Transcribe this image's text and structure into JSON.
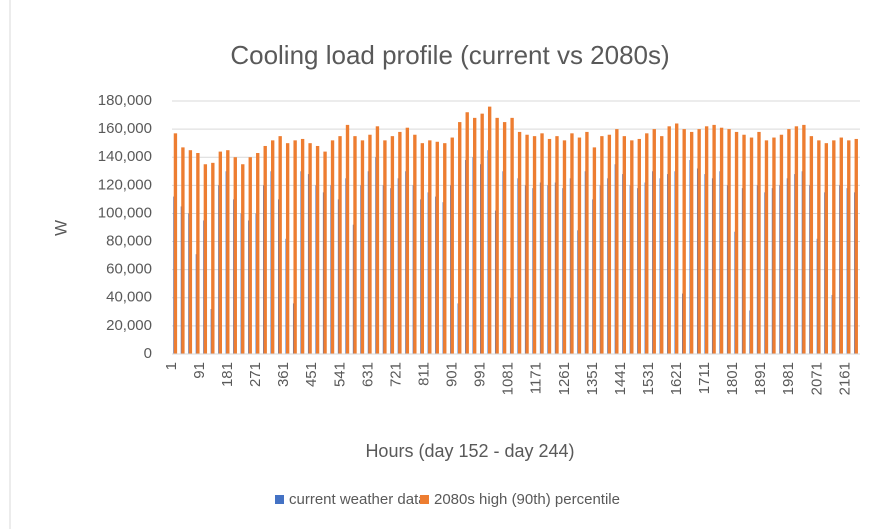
{
  "chart_data": {
    "type": "bar",
    "title": "Cooling load profile (current vs 2080s)",
    "x_label": "Hours (day 152 - day 244)",
    "y_label": "W",
    "x": [
      12,
      36,
      60,
      84,
      108,
      132,
      156,
      180,
      204,
      228,
      252,
      276,
      300,
      324,
      348,
      372,
      396,
      420,
      444,
      468,
      492,
      516,
      540,
      564,
      588,
      612,
      636,
      660,
      684,
      708,
      732,
      756,
      780,
      804,
      828,
      852,
      876,
      900,
      924,
      948,
      972,
      996,
      1020,
      1044,
      1068,
      1092,
      1116,
      1140,
      1164,
      1188,
      1212,
      1236,
      1260,
      1284,
      1308,
      1332,
      1356,
      1380,
      1404,
      1428,
      1452,
      1476,
      1500,
      1524,
      1548,
      1572,
      1596,
      1620,
      1644,
      1668,
      1692,
      1716,
      1740,
      1764,
      1788,
      1812,
      1836,
      1860,
      1884,
      1908,
      1932,
      1956,
      1980,
      2004,
      2028,
      2052,
      2076,
      2100,
      2124,
      2148,
      2172,
      2196
    ],
    "xlim": [
      1,
      2208
    ],
    "xticks": [
      1,
      91,
      181,
      271,
      361,
      451,
      541,
      631,
      721,
      811,
      901,
      991,
      1081,
      1171,
      1261,
      1351,
      1441,
      1531,
      1621,
      1711,
      1801,
      1891,
      1981,
      2071,
      2161
    ],
    "ylim": [
      0,
      180000
    ],
    "yticks": [
      0,
      {
        "value": 20000,
        "label": "20,000"
      },
      {
        "value": 40000,
        "label": "40,000"
      },
      {
        "value": 60000,
        "label": "60,000"
      },
      {
        "value": 80000,
        "label": "80,000"
      },
      {
        "value": 100000,
        "label": "100,000"
      },
      {
        "value": 120000,
        "label": "120,000"
      },
      {
        "value": 140000,
        "label": "140,000"
      },
      {
        "value": 160000,
        "label": "160,000"
      },
      {
        "value": 180000,
        "label": "180,000"
      }
    ],
    "grid": true,
    "legend": "bottom",
    "series": [
      {
        "name": "current weather data",
        "color": "#4472c4",
        "values": [
          112000,
          105000,
          100000,
          71000,
          95000,
          32000,
          120000,
          130000,
          110000,
          100000,
          95000,
          100000,
          120000,
          130000,
          110000,
          82000,
          36000,
          130000,
          128000,
          120000,
          115000,
          120000,
          110000,
          125000,
          92000,
          120000,
          130000,
          140000,
          120000,
          118000,
          125000,
          130000,
          120000,
          110000,
          115000,
          112000,
          108000,
          120000,
          36000,
          138000,
          140000,
          135000,
          145000,
          102000,
          130000,
          40000,
          125000,
          120000,
          118000,
          122000,
          120000,
          122000,
          118000,
          125000,
          88000,
          130000,
          110000,
          120000,
          125000,
          135000,
          128000,
          120000,
          118000,
          122000,
          130000,
          125000,
          128000,
          130000,
          43000,
          138000,
          132000,
          128000,
          125000,
          130000,
          120000,
          87000,
          118000,
          31000,
          120000,
          115000,
          118000,
          120000,
          125000,
          128000,
          130000,
          120000,
          82000,
          115000,
          42000,
          120000,
          118000,
          115000
        ]
      },
      {
        "name": "2080s high (90th) percentile",
        "color": "#ed7d31",
        "values": [
          157000,
          147000,
          145000,
          143000,
          135000,
          136000,
          144000,
          145000,
          140000,
          135000,
          140000,
          143000,
          148000,
          152000,
          155000,
          150000,
          152000,
          153000,
          150000,
          148000,
          144000,
          152000,
          155000,
          163000,
          155000,
          152000,
          156000,
          162000,
          152000,
          155000,
          158000,
          161000,
          156000,
          150000,
          152000,
          151000,
          150000,
          154000,
          165000,
          172000,
          168000,
          171000,
          176000,
          168000,
          165000,
          168000,
          158000,
          156000,
          155000,
          157000,
          153000,
          155000,
          152000,
          157000,
          154000,
          158000,
          147000,
          155000,
          156000,
          160000,
          155000,
          152000,
          153000,
          157000,
          160000,
          155000,
          162000,
          164000,
          160000,
          158000,
          160000,
          162000,
          163000,
          161000,
          160000,
          158000,
          156000,
          154000,
          158000,
          152000,
          154000,
          156000,
          160000,
          162000,
          163000,
          155000,
          152000,
          150000,
          152000,
          154000,
          152000,
          153000
        ]
      }
    ]
  }
}
